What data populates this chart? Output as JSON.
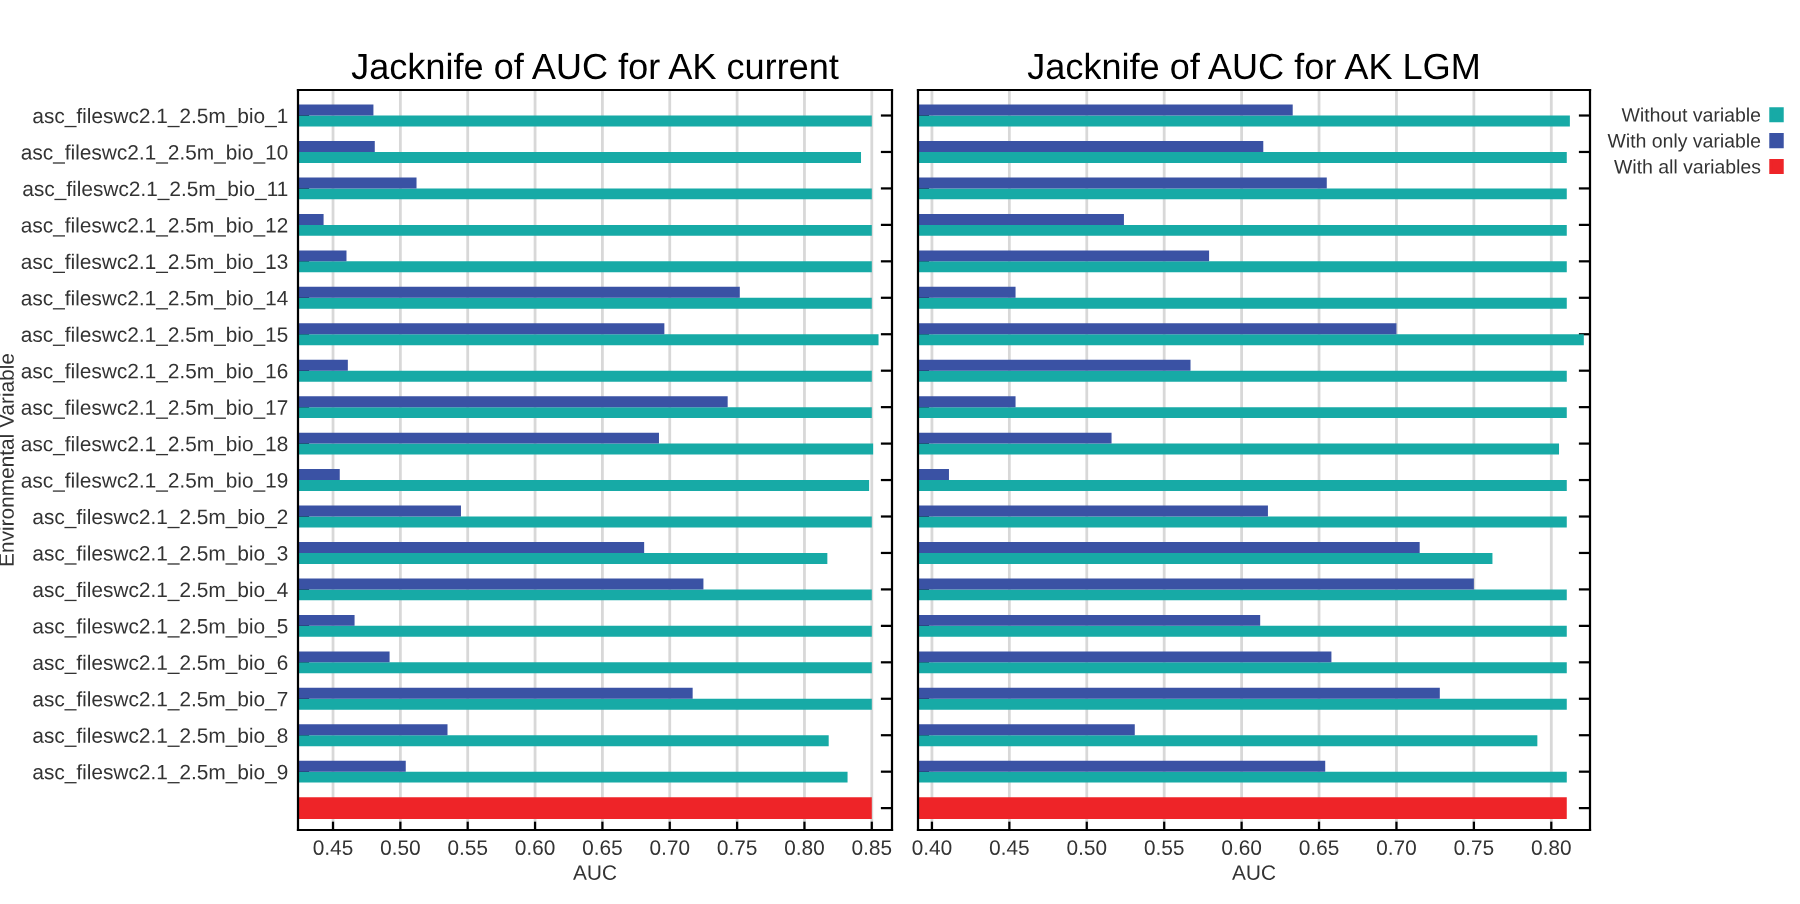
{
  "chart_data": [
    {
      "type": "bar",
      "orientation": "horizontal",
      "title": "Jacknife of AUC for AK current",
      "xlabel": "AUC",
      "ylabel": "Environmental Variable",
      "categories": [
        "asc_fileswc2.1_2.5m_bio_1",
        "asc_fileswc2.1_2.5m_bio_10",
        "asc_fileswc2.1_2.5m_bio_11",
        "asc_fileswc2.1_2.5m_bio_12",
        "asc_fileswc2.1_2.5m_bio_13",
        "asc_fileswc2.1_2.5m_bio_14",
        "asc_fileswc2.1_2.5m_bio_15",
        "asc_fileswc2.1_2.5m_bio_16",
        "asc_fileswc2.1_2.5m_bio_17",
        "asc_fileswc2.1_2.5m_bio_18",
        "asc_fileswc2.1_2.5m_bio_19",
        "asc_fileswc2.1_2.5m_bio_2",
        "asc_fileswc2.1_2.5m_bio_3",
        "asc_fileswc2.1_2.5m_bio_4",
        "asc_fileswc2.1_2.5m_bio_5",
        "asc_fileswc2.1_2.5m_bio_6",
        "asc_fileswc2.1_2.5m_bio_7",
        "asc_fileswc2.1_2.5m_bio_8",
        "asc_fileswc2.1_2.5m_bio_9",
        null
      ],
      "series": [
        {
          "color": "#17aaa6",
          "values": [
            0.85,
            0.842,
            0.85,
            0.85,
            0.85,
            0.85,
            0.855,
            0.85,
            0.85,
            0.851,
            0.848,
            0.85,
            0.817,
            0.85,
            0.85,
            0.85,
            0.85,
            0.818,
            0.832,
            null
          ]
        },
        {
          "color": "#3a52a4",
          "values": [
            0.48,
            0.481,
            0.512,
            0.443,
            0.46,
            0.752,
            0.696,
            0.461,
            0.743,
            0.692,
            0.455,
            0.545,
            0.681,
            0.725,
            0.466,
            0.492,
            0.717,
            0.535,
            0.504,
            null
          ]
        },
        {
          "color": "#ee2428",
          "values": [
            null,
            null,
            null,
            null,
            null,
            null,
            null,
            null,
            null,
            null,
            null,
            null,
            null,
            null,
            null,
            null,
            null,
            null,
            null,
            0.85
          ]
        }
      ],
      "xlim": [
        0.424,
        0.865
      ],
      "xticks": [
        0.45,
        {
          "value": 0.5,
          "label": "0.50"
        },
        0.55,
        {
          "value": 0.6,
          "label": "0.60"
        },
        0.65,
        {
          "value": 0.7,
          "label": "0.70"
        },
        0.75,
        {
          "value": 0.8,
          "label": "0.80"
        },
        0.85
      ],
      "grid": "x",
      "legend": false
    },
    {
      "type": "bar",
      "orientation": "horizontal",
      "title": "Jacknife of AUC for AK LGM",
      "xlabel": "AUC",
      "categories": [
        null,
        null,
        null,
        null,
        null,
        null,
        null,
        null,
        null,
        null,
        null,
        null,
        null,
        null,
        null,
        null,
        null,
        null,
        null,
        null
      ],
      "series": [
        {
          "name": "Without variable",
          "color": "#17aaa6",
          "values": [
            0.812,
            0.81,
            0.81,
            0.81,
            0.81,
            0.81,
            0.821,
            0.81,
            0.81,
            0.805,
            0.81,
            0.81,
            0.762,
            0.81,
            0.81,
            0.81,
            0.81,
            0.791,
            0.81,
            null
          ]
        },
        {
          "name": "With only variable",
          "color": "#3a52a4",
          "values": [
            0.633,
            0.614,
            0.655,
            0.524,
            0.579,
            0.454,
            0.7,
            0.567,
            0.454,
            0.516,
            0.411,
            0.617,
            0.715,
            0.75,
            0.612,
            0.658,
            0.728,
            0.531,
            0.654,
            null
          ]
        },
        {
          "name": "With all variables",
          "color": "#ee2428",
          "values": [
            null,
            null,
            null,
            null,
            null,
            null,
            null,
            null,
            null,
            null,
            null,
            null,
            null,
            null,
            null,
            null,
            null,
            null,
            null,
            0.81
          ]
        }
      ],
      "xlim": [
        0.391,
        0.825
      ],
      "xticks": [
        {
          "value": 0.4,
          "label": "0.40"
        },
        0.45,
        {
          "value": 0.5,
          "label": "0.50"
        },
        0.55,
        {
          "value": 0.6,
          "label": "0.60"
        },
        0.65,
        {
          "value": 0.7,
          "label": "0.70"
        },
        0.75,
        {
          "value": 0.8,
          "label": "0.80"
        }
      ],
      "grid": "x",
      "legend": "right",
      "tick_labels": "x"
    }
  ]
}
